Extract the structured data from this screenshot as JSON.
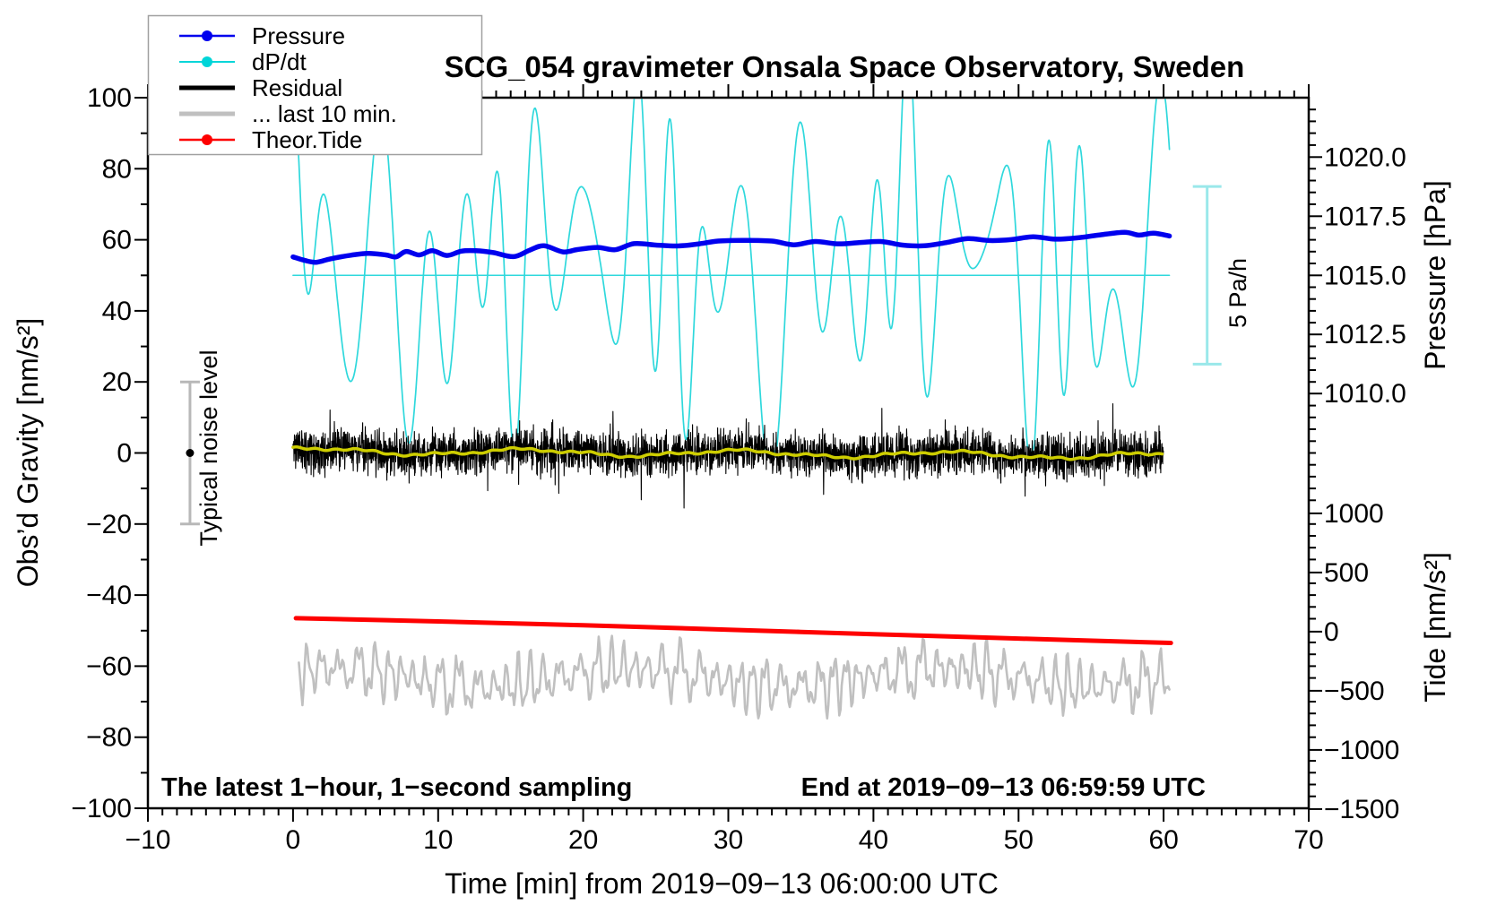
{
  "figure": {
    "title": "SCG_054 gravimeter Onsala Space Observatory, Sweden"
  },
  "legend": {
    "items": [
      {
        "label": "Pressure",
        "color": "#0000ee",
        "line_width": 2.5,
        "marker": "dot"
      },
      {
        "label": "dP/dt",
        "color": "#00d5d8",
        "line_width": 2.0,
        "marker": "dot"
      },
      {
        "label": "Residual",
        "color": "#000000",
        "line_width": 5.0,
        "marker": "none"
      },
      {
        "label": "... last 10 min.",
        "color": "#c0c0c0",
        "line_width": 5.0,
        "marker": "none"
      },
      {
        "label": "Theor.Tide",
        "color": "#fe0000",
        "line_width": 2.5,
        "marker": "dot"
      }
    ]
  },
  "annotations": {
    "sampling_note": "The latest 1−hour, 1−second sampling",
    "end_time_note": "End at 2019−09−13 06:59:59 UTC",
    "noise_label": "Typical noise level",
    "scalebar_label": "5 Pa/h"
  },
  "axes": {
    "x": {
      "label": "Time [min] from 2019−09−13 06:00:00 UTC",
      "min": -10,
      "max": 70,
      "minor_step": 1,
      "major_tick_values": [
        -10,
        0,
        10,
        20,
        30,
        40,
        50,
        60,
        70
      ],
      "major_tick_labels": [
        "−10",
        "0",
        "10",
        "20",
        "30",
        "40",
        "50",
        "60",
        "70"
      ]
    },
    "gravity": {
      "label": "Obs’d Gravity [nm/s²]",
      "min": -100,
      "max": 100,
      "minor_step": 10,
      "major_tick_values": [
        -100,
        -80,
        -60,
        -40,
        -20,
        0,
        20,
        40,
        60,
        80,
        100
      ],
      "major_tick_labels": [
        "−100",
        "−80",
        "−60",
        "−40",
        "−20",
        "0",
        "20",
        "40",
        "60",
        "80",
        "100"
      ]
    },
    "pressure": {
      "label": "Pressure [hPa]",
      "major_tick_values": [
        1010.0,
        1012.5,
        1015.0,
        1017.5,
        1020.0
      ],
      "major_tick_labels": [
        "1010.0",
        "1012.5",
        "1015.0",
        "1017.5",
        "1020.0"
      ],
      "minor_step_hpa": 0.5,
      "gravity_units_per_hpa": 6.658,
      "hpa_at_gravity_50": 1015.0
    },
    "tide": {
      "label": "Tide [nm/s²]",
      "major_tick_values": [
        -1500,
        -1000,
        -500,
        0,
        500,
        1000
      ],
      "major_tick_labels": [
        "−1500",
        "−1000",
        "−500",
        "0",
        "500",
        "1000"
      ],
      "minor_step": 100,
      "tide_units_per_gravity_unit": 30.04,
      "tide_zero_at_gravity": -50.3
    },
    "dpdt": {
      "pa_per_h_zero_at_gravity": 50,
      "gravity_units_per_pa_per_h": 10
    }
  },
  "chart_data": {
    "type": "line",
    "title": "SCG_054 gravimeter Onsala Space Observatory, Sweden",
    "xlabel": "Time [min] from 2019−09−13 06:00:00 UTC",
    "x_range_min": [
      -10,
      70
    ],
    "gravity_range": [
      -100,
      100
    ],
    "series": [
      {
        "name": "Pressure",
        "axis": "pressure",
        "unit": "hPa",
        "color": "#0000ee",
        "width": 5.5,
        "style": "smooth",
        "t": [
          0,
          0.8,
          1.6,
          2.6,
          4,
          5.2,
          6.4,
          7.1,
          7.8,
          8.7,
          9.6,
          10.6,
          11.6,
          12.6,
          13.8,
          15.2,
          16.3,
          17.3,
          18.6,
          19.6,
          21,
          22.2,
          23.5,
          25,
          26.5,
          28,
          29.3,
          31,
          33,
          34.5,
          36,
          37.5,
          39,
          40.5,
          42,
          43.5,
          45,
          46.5,
          48,
          49.5,
          51,
          52.5,
          54,
          55.5,
          57.3,
          58.3,
          59.3,
          60.4
        ],
        "values": [
          1015.78,
          1015.63,
          1015.55,
          1015.7,
          1015.85,
          1015.93,
          1015.86,
          1015.78,
          1016.01,
          1015.86,
          1016.04,
          1015.84,
          1016.02,
          1016.04,
          1015.96,
          1015.79,
          1016.06,
          1016.25,
          1015.99,
          1016.09,
          1016.18,
          1016.08,
          1016.34,
          1016.28,
          1016.24,
          1016.33,
          1016.45,
          1016.48,
          1016.45,
          1016.29,
          1016.43,
          1016.33,
          1016.38,
          1016.43,
          1016.28,
          1016.25,
          1016.38,
          1016.55,
          1016.47,
          1016.51,
          1016.63,
          1016.53,
          1016.58,
          1016.7,
          1016.82,
          1016.7,
          1016.78,
          1016.66
        ]
      },
      {
        "name": "dP/dt",
        "axis": "dpdt",
        "unit": "Pa/h",
        "color": "#2fd8dc",
        "width": 1.7,
        "style": "generated-oscillation",
        "summary": {
          "mean_pa_per_h": 0.3,
          "typical_amplitude_pa_per_h": 4.5,
          "period_min_range": [
            2,
            4
          ],
          "t_start": 0,
          "t_end": 60.4,
          "clipped_above_gravity": 100
        },
        "gen": {
          "step_min": 0.05
        }
      },
      {
        "name": "Residual",
        "axis": "gravity",
        "unit": "nm/s²",
        "color": "#000000",
        "width": 1.1,
        "style": "generated-noise",
        "summary": {
          "mean": 0.0,
          "typical_peak": 9,
          "max_peak": 16,
          "sampling_s": 1,
          "t_start": 0,
          "t_end": 60.0
        },
        "gen": {
          "seed": 11,
          "step_min": 0.016667,
          "band": 6.0,
          "spike_chance": 0.013
        }
      },
      {
        "name": "Residual smoothed",
        "axis": "gravity",
        "unit": "nm/s²",
        "color": "#cdcd00",
        "width": 3.5,
        "style": "generated-smooth",
        "summary": {
          "start": 1.0,
          "end": -0.9,
          "wander_amplitude": 1.3,
          "t_start": 0,
          "t_end": 60.0
        },
        "gen": {
          "step_min": 0.1
        }
      },
      {
        "name": "... last 10 min.",
        "axis": "gravity",
        "unit": "nm/s²",
        "color": "#c0c0c0",
        "width": 2.6,
        "style": "generated-spiky",
        "summary": {
          "mean": -63,
          "typical_range": [
            -72,
            -54
          ],
          "extreme_range": [
            -76,
            -51
          ],
          "t_start": 0.4,
          "t_end": 60.4
        },
        "gen": {
          "seed": 3,
          "step_min": 0.083333
        }
      },
      {
        "name": "Theor.Tide",
        "axis": "tide",
        "unit": "nm/s²",
        "color": "#fe0000",
        "width": 5,
        "style": "smooth",
        "t": [
          0.2,
          10,
          20,
          30,
          40,
          50,
          60.5
        ],
        "values": [
          114,
          87,
          54,
          17,
          -21,
          -58,
          -95
        ]
      }
    ],
    "reference_line": {
      "name": "dP/dt zero line",
      "axis": "dpdt",
      "value_pa_per_h": 0,
      "t_start": 0,
      "t_end": 60.4,
      "color": "#2fd8dc",
      "width": 1.5
    },
    "noise_bar": {
      "t": -7.1,
      "center_gravity": 0,
      "half_range_gravity": 20,
      "bar_color": "#b8b8b8",
      "dot_color": "#000000"
    },
    "scale_bar": {
      "t": 63,
      "gravity_from": 25,
      "gravity_to": 75,
      "equals": "5 Pa/h",
      "color": "#9ae8ea"
    }
  }
}
